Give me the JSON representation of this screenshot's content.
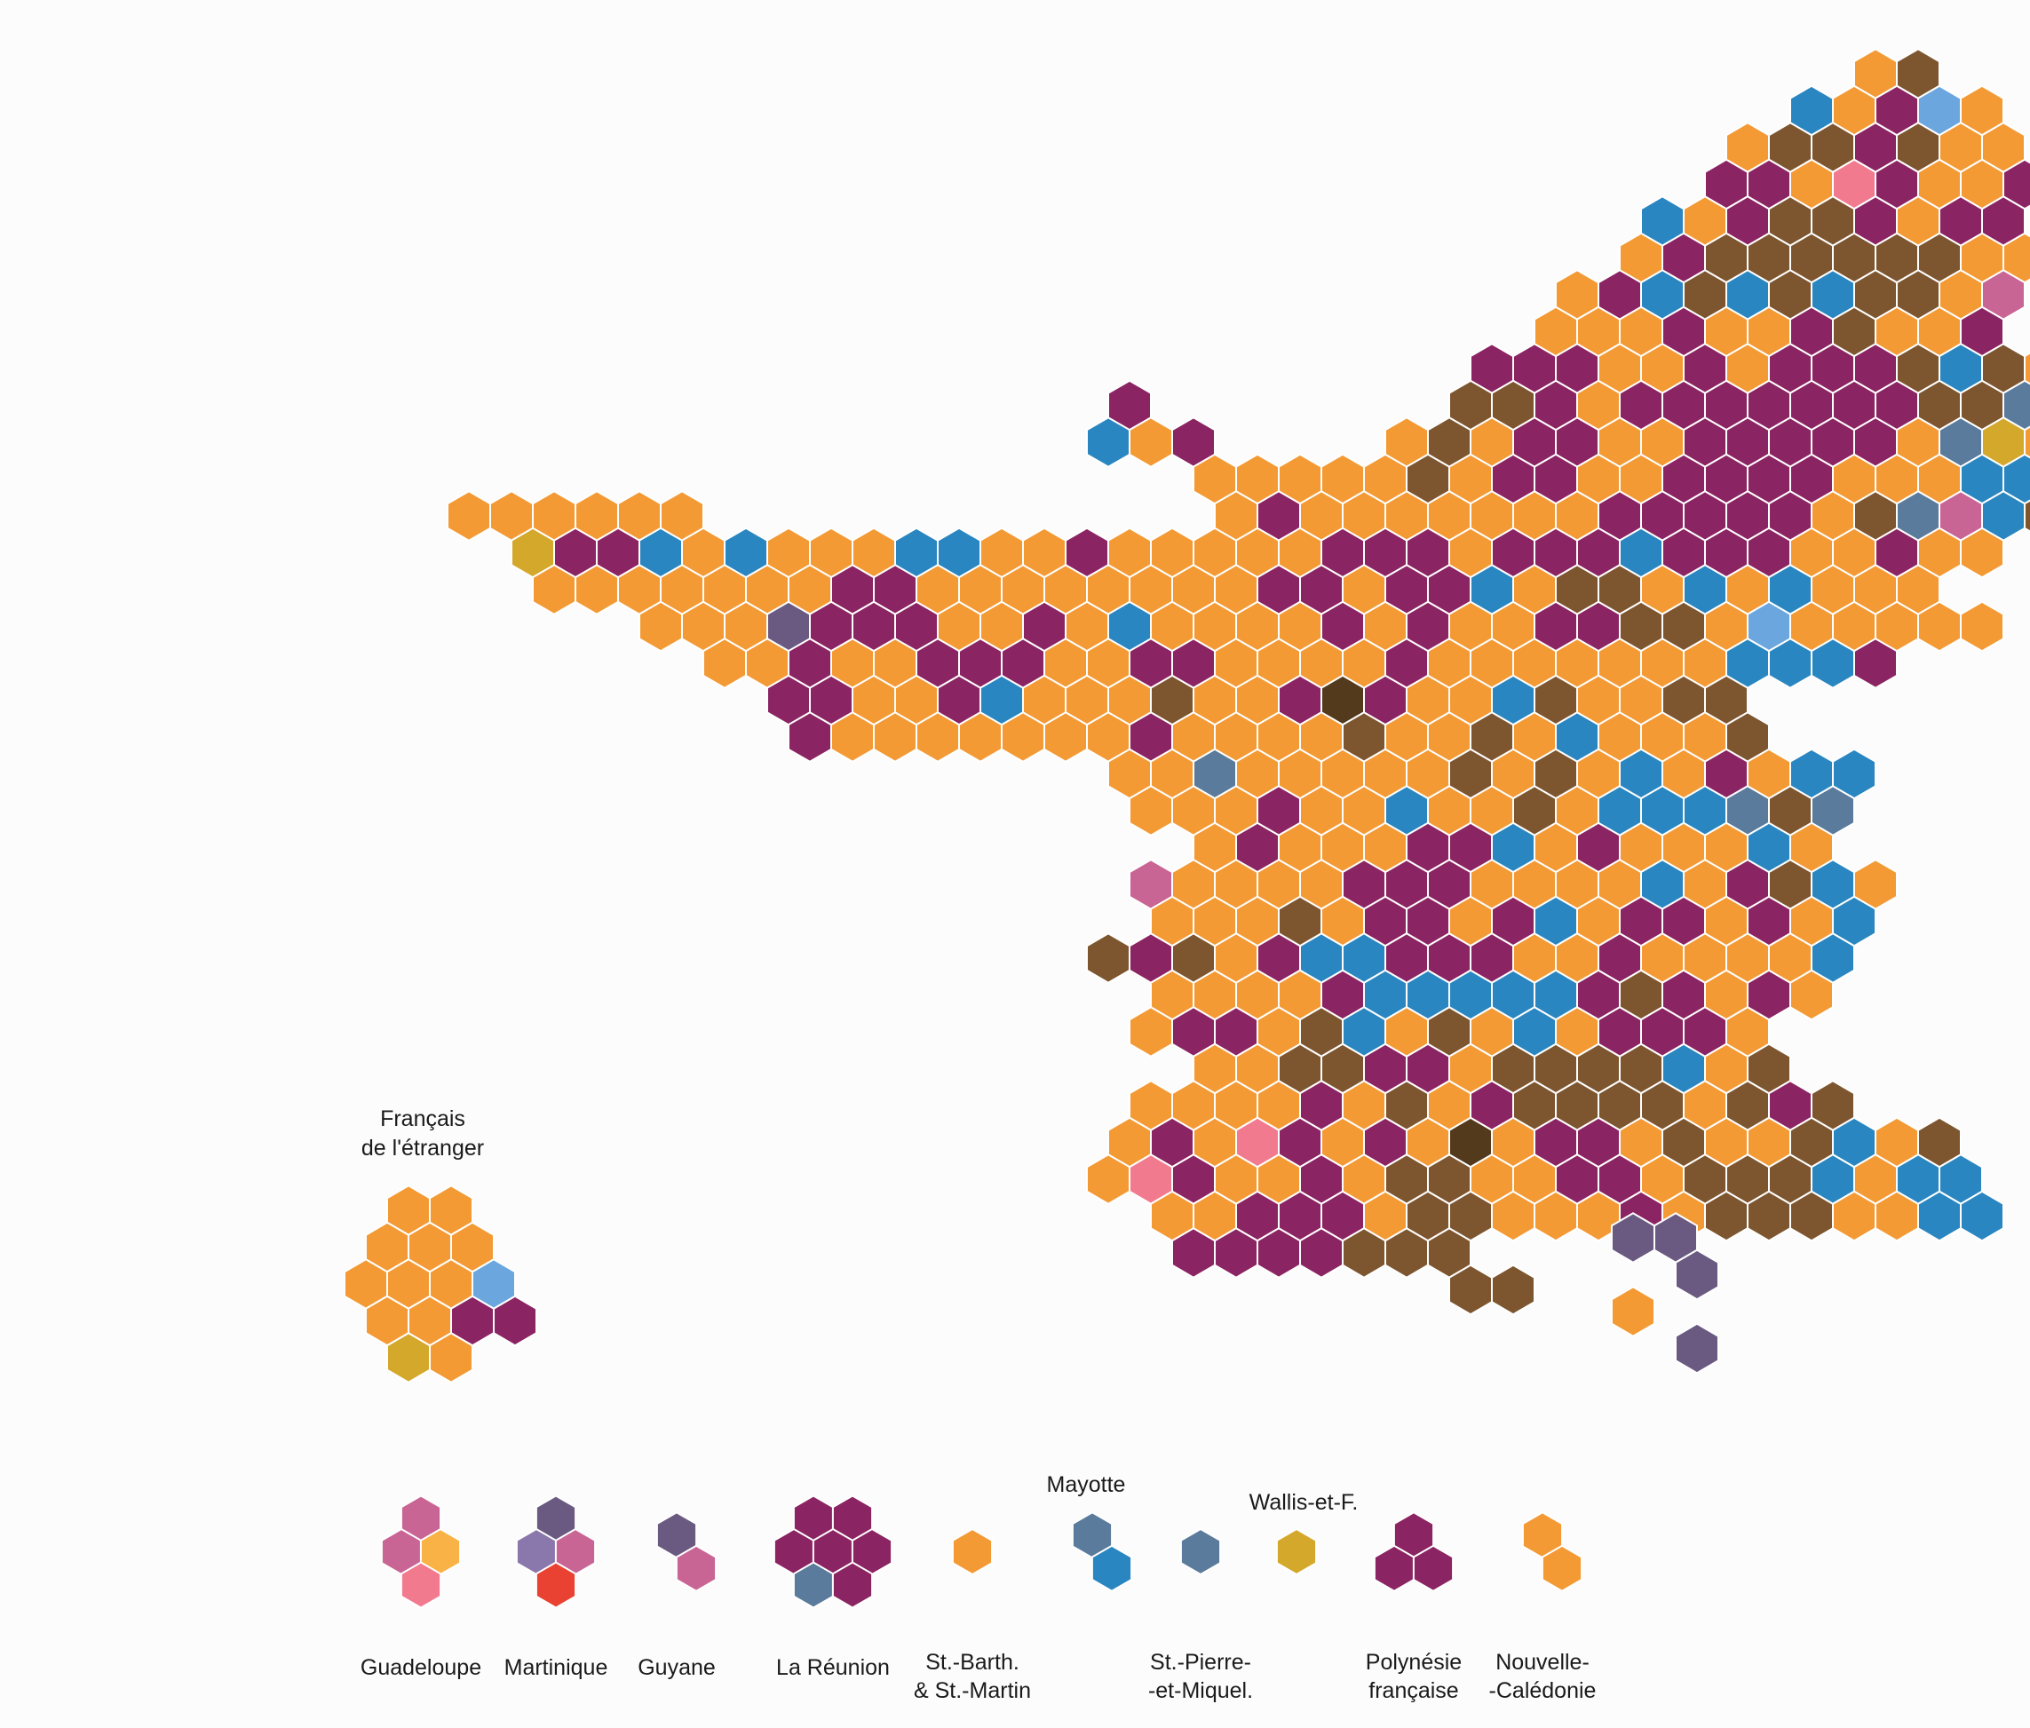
{
  "palette": {
    "O": "#f39a35",
    "P": "#8b2462",
    "B": "#7d5630",
    "D": "#533a1c",
    "U": "#2a86c0",
    "L": "#6ca6de",
    "S": "#5b7b9c",
    "K": "#c96595",
    "R": "#f27a8e",
    "Y": "#d4a82b",
    "V": "#6a5a82",
    "A": "#f9b246",
    "M": "#8a77ab",
    "E": "#ea4232"
  },
  "overseas_label": {
    "line1": "Français",
    "line2": "de l'étranger"
  },
  "mainland": [
    "..........................................................................",
    "..........................................................................",
    "............................................OB............................",
    "..........................................UOPLO...........................",
    ".........................................OBBPBOO..........................",
    "........................................PPORPOOP..........................",
    ".......................................UOPBBPOPP..........................",
    "......................................OPBBBBBBOO..........................",
    ".....................................OPUBUBUBBOK..........................",
    "....................................OOOPOOPBOOP...........................",
    "...................................PPPOOPOPPPBUBO.........................",
    "..........................P.......BBPOPPPPPPPBBSBP...OU...................",
    "..........................UOP....OBOPPOOPPPPPOSYOOPOOOO...................",
    "............................OOOOOBOPPOOPPPPOOOUUBOO.......................",
    "...........OOOOOO............OPOOOOOOOPPPPPOBSKUBOPP......................",
    "............YPPUOUOOOUUOOPOOOOOPPPOPPPUPPPOOPOO...........................",
    ".............OOOOOOOPPOOOOOOOOPPOPPUOBBOUOUOOO............................",
    "...............OOOVPPPOOPOUOOOOPOPOOPPBBOLOOOOO...........................",
    ".................OOPOOPPPOOPPOOOOPOOOOOOOUUUP.............................",
    "..................PPOOPUOOOBOOPDPOOUBOOBB.................................",
    "...................POOOOOOOPOOOOBOOBOUOOOB................................",
    "..........................OOSOOOOOBOBOUOPOUU..............................",
    "...........................OOOPOOUOOBOUUUSBS..............................",
    "............................OPOOOPPUOPOOOUO...............................",
    "...........................KOOOOPPPOOOOUOPBUO.............................",
    "...........................OOOBOPPOPUOPPOPOU..............................",
    "..........................BPBOPUUPPPOOPOOOOU..............................",
    "...........................OOOOPUUUUUPBPOPO...............................",
    "...........................OPPOBUOBOUOPPPO................................",
    "............................OOBBPPOBBBBUOB................................",
    "...........................OOOOPOBOPBBBBOBPB..............................",
    "..........................OPORPOPODOPPOBOOBUOB............................",
    "..........................ORPOOPOBBOOPPOBBBUOUU...........................",
    "...........................OOPPPOBBOOOPOBBBOOUU...........................",
    "............................PPPPBBB.......................................",
    "..................................BB......................................",
    ".........................................................................."
  ],
  "abroad": [
    "..............",
    "..............",
    ".....OO.......",
    "....OOO.......",
    "....OOOL......",
    "....OOPP......",
    ".....YO......."
  ],
  "corner": [
    "VV",
    ".V",
    "O.",
    ".V"
  ],
  "legend": [
    {
      "label": "Guadeloupe",
      "label2": "",
      "hexes": [
        [
          0,
          0,
          "K"
        ],
        [
          -1,
          1,
          "K"
        ],
        [
          1,
          1,
          "A"
        ],
        [
          0,
          2,
          "R"
        ]
      ]
    },
    {
      "label": "Martinique",
      "label2": "",
      "hexes": [
        [
          0,
          0,
          "V"
        ],
        [
          -1,
          1,
          "M"
        ],
        [
          1,
          1,
          "K"
        ],
        [
          0,
          2,
          "E"
        ]
      ]
    },
    {
      "label": "Guyane",
      "label2": "",
      "hexes": [
        [
          0,
          0,
          "V"
        ],
        [
          1,
          1,
          "K"
        ]
      ]
    },
    {
      "label": "La Réunion",
      "label2": "",
      "hexes": [
        [
          -1,
          0,
          "P"
        ],
        [
          1,
          0,
          "P"
        ],
        [
          -2,
          1,
          "P"
        ],
        [
          0,
          1,
          "P"
        ],
        [
          2,
          1,
          "P"
        ],
        [
          -1,
          2,
          "S"
        ],
        [
          1,
          2,
          "P"
        ]
      ]
    },
    {
      "label": "St.-Barth.",
      "label2": "& St.-Martin",
      "hexes": [
        [
          0,
          0,
          "O"
        ]
      ]
    },
    {
      "label": "",
      "label2": "",
      "top_label": "Mayotte",
      "hexes": [
        [
          0,
          0,
          "S"
        ],
        [
          1,
          1,
          "U"
        ]
      ]
    },
    {
      "label": "St.-Pierre-",
      "label2": "-et-Miquel.",
      "hexes": [
        [
          0,
          0,
          "S"
        ]
      ]
    },
    {
      "label": "",
      "label2": "",
      "top_label": "Wallis-et-F.",
      "hexes": [
        [
          0,
          0,
          "Y"
        ]
      ]
    },
    {
      "label": "Polynésie",
      "label2": "française",
      "hexes": [
        [
          0,
          0,
          "P"
        ],
        [
          -1,
          1,
          "P"
        ],
        [
          1,
          1,
          "P"
        ]
      ]
    },
    {
      "label": "Nouvelle-",
      "label2": "-Calédonie",
      "hexes": [
        [
          0,
          0,
          "O"
        ],
        [
          1,
          1,
          "O"
        ]
      ]
    }
  ]
}
